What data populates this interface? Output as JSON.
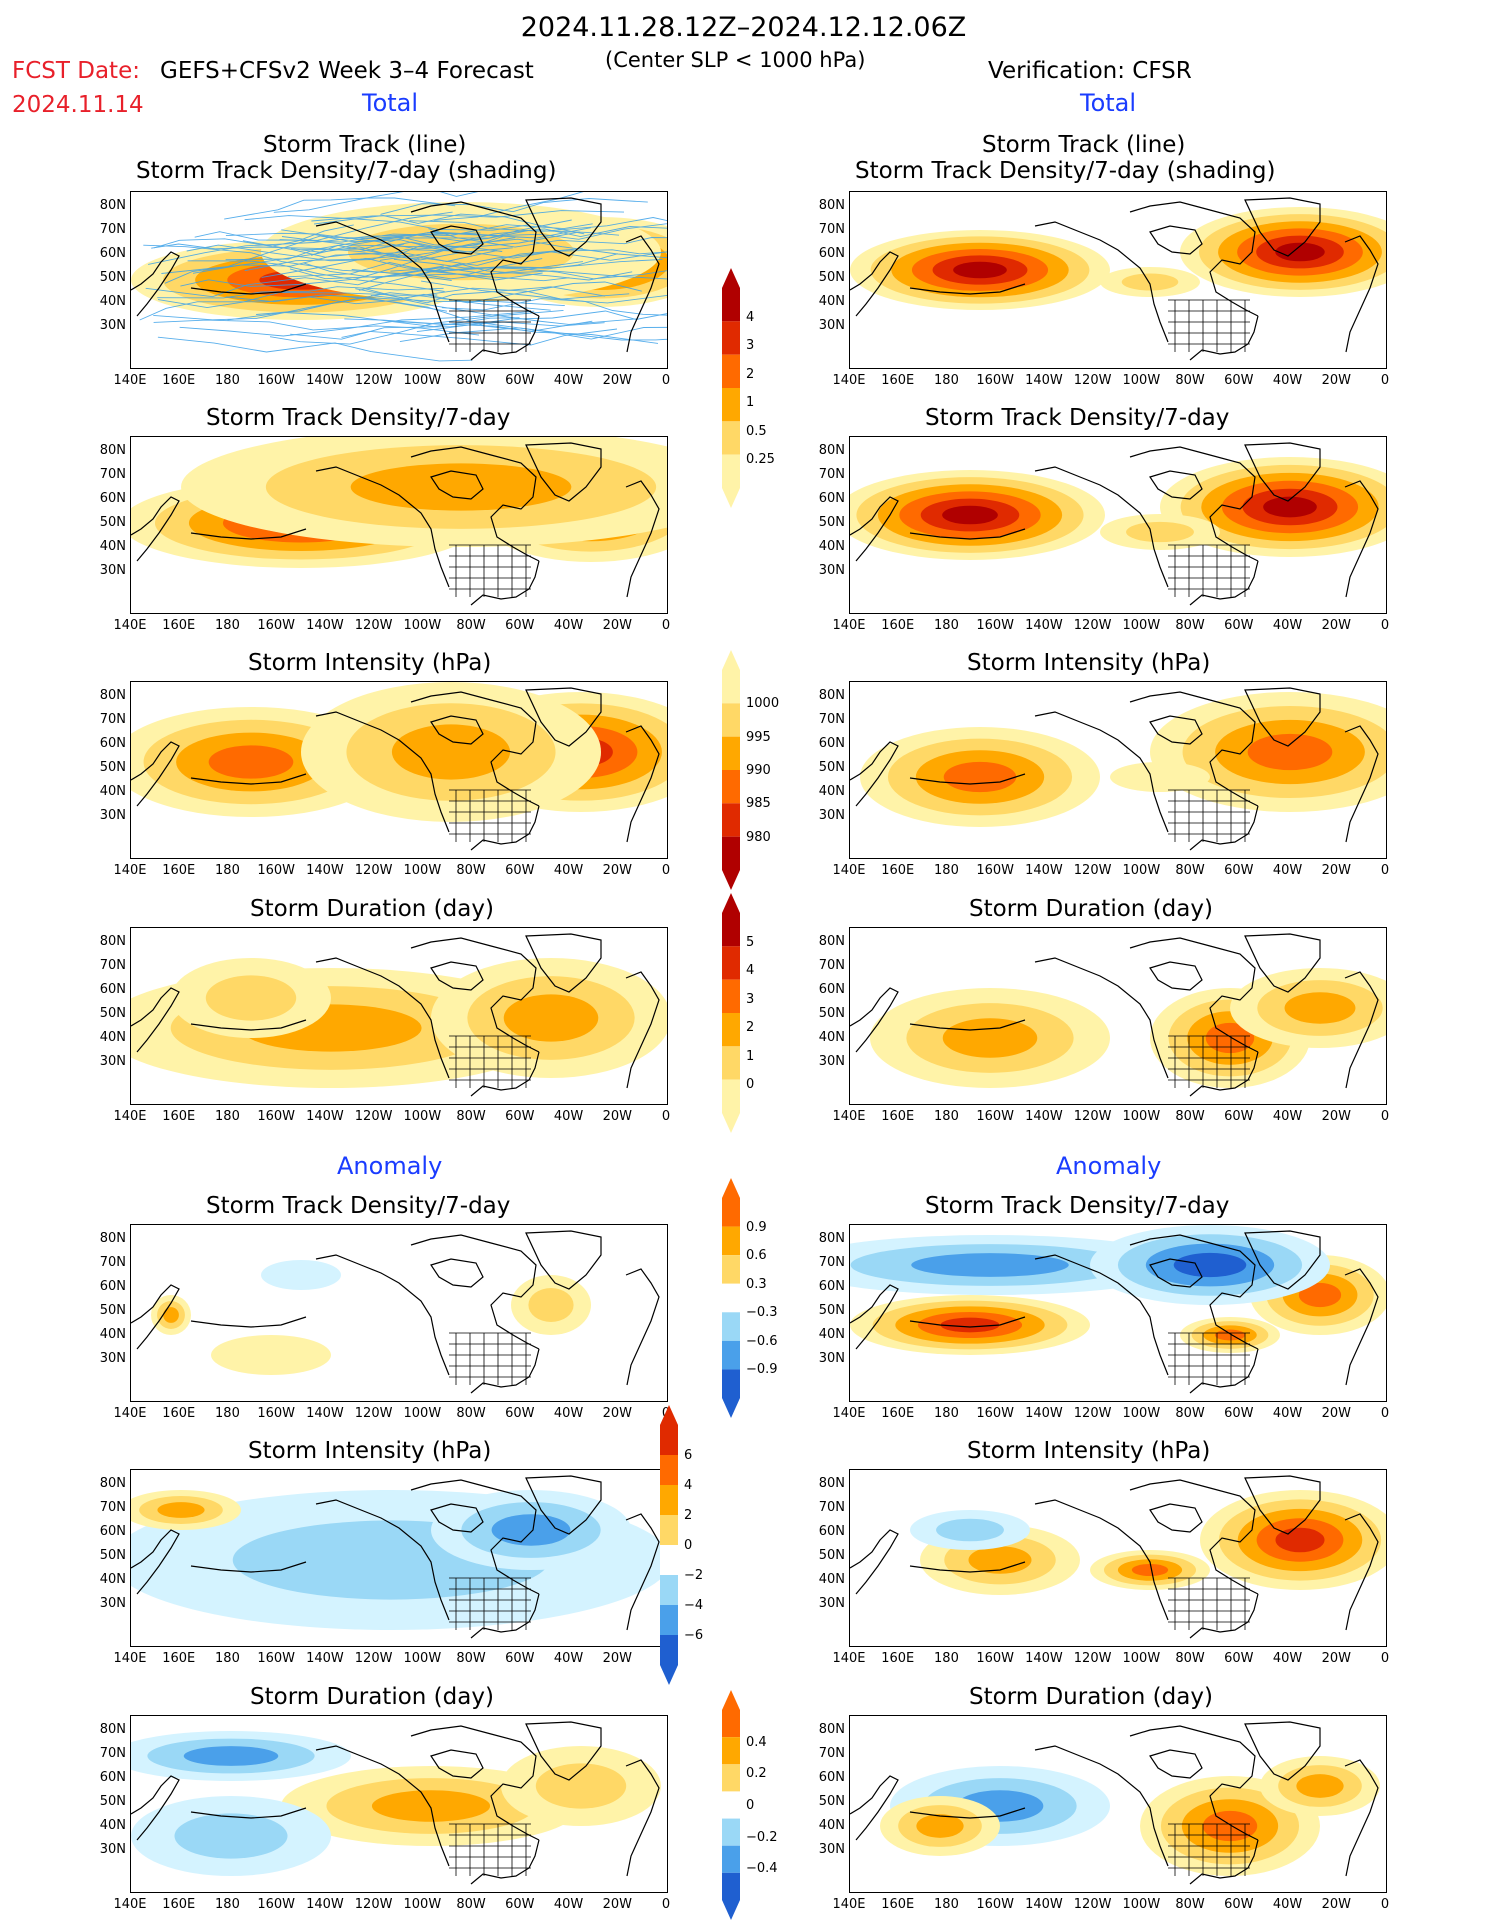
{
  "header": {
    "date_range": "2024.11.28.12Z–2024.12.12.06Z",
    "fcst_label": "FCST Date:",
    "fcst_date": "2024.11.14",
    "model": "GEFS+CFSv2 Week 3–4 Forecast",
    "criterion": "(Center SLP < 1000 hPa)",
    "verification": "Verification: CFSR"
  },
  "sections": {
    "total": "Total",
    "anomaly": "Anomaly"
  },
  "titles": {
    "track_line": "Storm Track (line)",
    "track_shading": "Storm Track Density/7-day (shading)",
    "density": "Storm Track Density/7-day",
    "intensity": "Storm Intensity (hPa)",
    "duration": "Storm Duration (day)"
  },
  "axes": {
    "lat": [
      "80N",
      "70N",
      "60N",
      "50N",
      "40N",
      "30N"
    ],
    "lon": [
      "140E",
      "160E",
      "180",
      "160W",
      "140W",
      "120W",
      "100W",
      "80W",
      "60W",
      "40W",
      "20W",
      "0"
    ]
  },
  "colorbars": {
    "density": [
      "4",
      "3",
      "2",
      "1",
      "0.5",
      "0.25"
    ],
    "intensity": [
      "1000",
      "995",
      "990",
      "985",
      "980"
    ],
    "duration": [
      "5",
      "4",
      "3",
      "2",
      "1",
      "0"
    ],
    "density_anom": [
      "0.9",
      "0.6",
      "0.3",
      "−0.3",
      "−0.6",
      "−0.9"
    ],
    "intensity_anom": [
      "6",
      "4",
      "2",
      "0",
      "−2",
      "−4",
      "−6"
    ],
    "duration_anom": [
      "0.4",
      "0.2",
      "0",
      "−0.2",
      "−0.4"
    ]
  },
  "colors": {
    "warm": [
      "#fff3a8",
      "#ffd866",
      "#ffa800",
      "#ff6a00",
      "#e02a00",
      "#b00000"
    ],
    "cool": [
      "#d4f3ff",
      "#9ad8f6",
      "#4aa0ea",
      "#1f5fd0"
    ],
    "track_line": "#3aa0e8",
    "section": "#1a3cff",
    "fcst": "#e8202a"
  }
}
